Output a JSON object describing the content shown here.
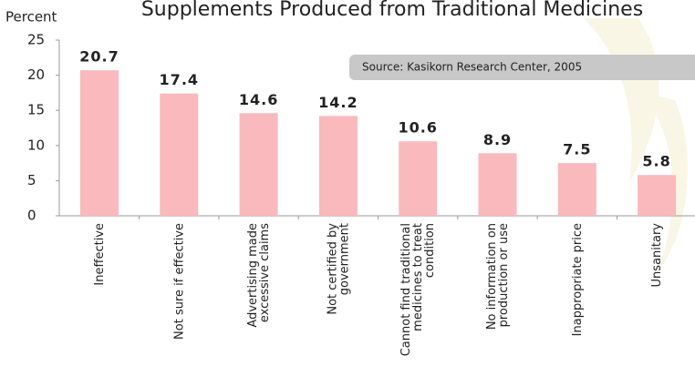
{
  "chart_data": {
    "type": "bar",
    "title": "Supplements Produced from Traditional Medicines",
    "y_label": "Percent",
    "annotation": "Source: Kasikorn Research Center, 2005",
    "categories": [
      [
        "Ineffective"
      ],
      [
        "Not sure if effective"
      ],
      [
        "Advertising made",
        "excessive claims"
      ],
      [
        "Not certified by",
        "government"
      ],
      [
        "Cannot find traditional",
        "medicines to treat",
        "condition"
      ],
      [
        "No information on",
        "production or use"
      ],
      [
        "Inappropriate price"
      ],
      [
        "Unsanitary"
      ]
    ],
    "values": [
      20.7,
      17.4,
      14.6,
      14.2,
      10.6,
      8.9,
      7.5,
      5.8
    ],
    "color": "#f9b9bd",
    "ylim": [
      0,
      25
    ],
    "yticks": [
      0,
      5,
      10,
      15,
      20,
      25
    ],
    "grid": false
  }
}
